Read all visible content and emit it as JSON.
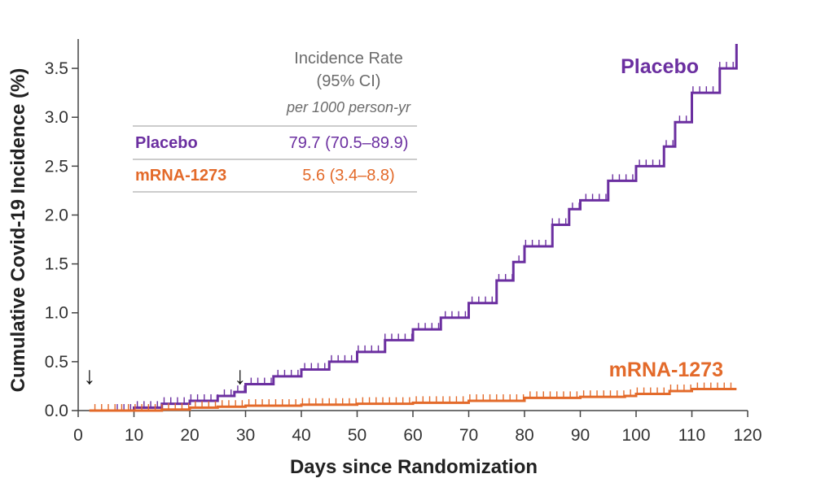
{
  "chart_data": {
    "type": "line",
    "xlabel": "Days since Randomization",
    "ylabel": "Cumulative Covid-19 Incidence (%)",
    "xlim": [
      0,
      120
    ],
    "ylim": [
      0,
      3.8
    ],
    "x_ticks": [
      0,
      10,
      20,
      30,
      40,
      50,
      60,
      70,
      80,
      90,
      100,
      110,
      120
    ],
    "y_ticks": [
      0.0,
      0.5,
      1.0,
      1.5,
      2.0,
      2.5,
      3.0,
      3.5
    ],
    "x_tick_labels": [
      "0",
      "10",
      "20",
      "30",
      "40",
      "50",
      "60",
      "70",
      "80",
      "90",
      "100",
      "110",
      "120"
    ],
    "y_tick_labels": [
      "0.0",
      "0.5",
      "1.0",
      "1.5",
      "2.0",
      "2.5",
      "3.0",
      "3.5"
    ],
    "grid": false,
    "step": true,
    "arrows_at_days": [
      2,
      29
    ],
    "legend_table": {
      "header_line1": "Incidence Rate",
      "header_line2": "(95% CI)",
      "header_sub": "per 1000 person-yr",
      "rows": [
        {
          "name": "Placebo",
          "value": "79.7 (70.5–89.9)"
        },
        {
          "name": "mRNA-1273",
          "value": "5.6 (3.4–8.8)"
        }
      ]
    },
    "series": [
      {
        "name": "Placebo",
        "color": "#6b2fa0",
        "x": [
          6,
          10,
          15,
          20,
          25,
          28,
          30,
          35,
          40,
          45,
          50,
          55,
          60,
          65,
          70,
          75,
          78,
          80,
          85,
          88,
          90,
          95,
          100,
          105,
          107,
          110,
          115,
          118
        ],
        "y": [
          0.0,
          0.03,
          0.07,
          0.1,
          0.15,
          0.19,
          0.27,
          0.35,
          0.42,
          0.5,
          0.6,
          0.72,
          0.83,
          0.95,
          1.1,
          1.33,
          1.52,
          1.68,
          1.9,
          2.06,
          2.15,
          2.35,
          2.5,
          2.7,
          2.95,
          3.25,
          3.5,
          3.75
        ]
      },
      {
        "name": "mRNA-1273",
        "color": "#e36a2a",
        "x": [
          2,
          6,
          10,
          15,
          20,
          25,
          30,
          40,
          50,
          60,
          70,
          80,
          90,
          98,
          100,
          106,
          110,
          118
        ],
        "y": [
          0.0,
          0.0,
          0.0,
          0.01,
          0.03,
          0.04,
          0.05,
          0.06,
          0.07,
          0.08,
          0.1,
          0.13,
          0.14,
          0.15,
          0.17,
          0.2,
          0.22,
          0.22
        ]
      }
    ]
  },
  "colors": {
    "placebo": "#6b2fa0",
    "mrna": "#e36a2a",
    "axis": "#444444",
    "legend_head": "#6b6b6b"
  },
  "arrow_glyph": "↓"
}
